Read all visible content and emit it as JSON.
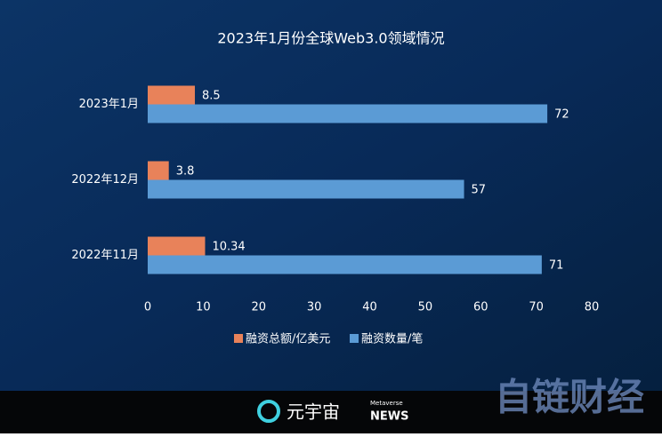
{
  "chart_data": {
    "type": "bar",
    "orientation": "horizontal",
    "title": "2023年1月份全球Web3.0领域情况",
    "categories": [
      "2023年1月",
      "2022年12月",
      "2022年11月"
    ],
    "series": [
      {
        "name": "融资总额/亿美元",
        "color": "#e8825a",
        "values": [
          8.5,
          3.8,
          10.34
        ]
      },
      {
        "name": "融资数量/笔",
        "color": "#5b9bd5",
        "values": [
          72,
          57,
          71
        ]
      }
    ],
    "xlim": [
      0,
      80
    ],
    "xticks": [
      0,
      10,
      20,
      30,
      40,
      50,
      60,
      70,
      80
    ],
    "grid": false,
    "legend": "bottom"
  },
  "footer": {
    "logo": "元宇宙",
    "logo_small": "Metaverse",
    "logo_news": "NEWS",
    "watermark": "自链财经"
  }
}
